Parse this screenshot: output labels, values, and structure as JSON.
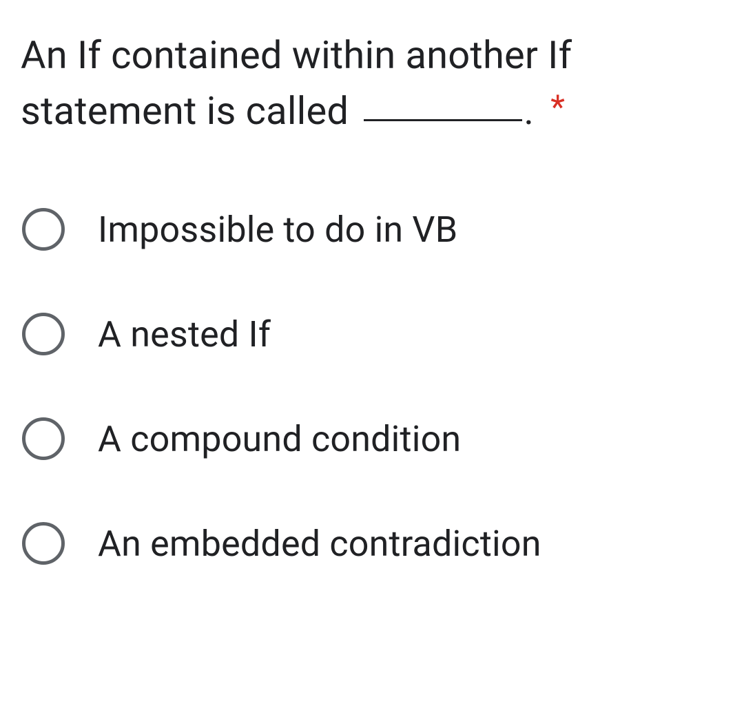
{
  "question": {
    "text_before_blank": "An If contained within another If statement is called",
    "text_after_blank": ".",
    "required_marker": "*",
    "required_color": "#d93025",
    "text_color": "#202124",
    "font_size": 56,
    "blank_width": 230
  },
  "options": [
    {
      "label": "Impossible to do in VB",
      "selected": false
    },
    {
      "label": "A nested If",
      "selected": false
    },
    {
      "label": "A compound condition",
      "selected": false
    },
    {
      "label": "An embedded contradiction",
      "selected": false
    }
  ],
  "styling": {
    "background_color": "#ffffff",
    "radio_border_color": "#5f6368",
    "radio_size": 62,
    "radio_border_width": 5,
    "option_font_size": 52,
    "option_text_color": "#202124",
    "option_gap": 90,
    "radio_label_gap": 48
  }
}
